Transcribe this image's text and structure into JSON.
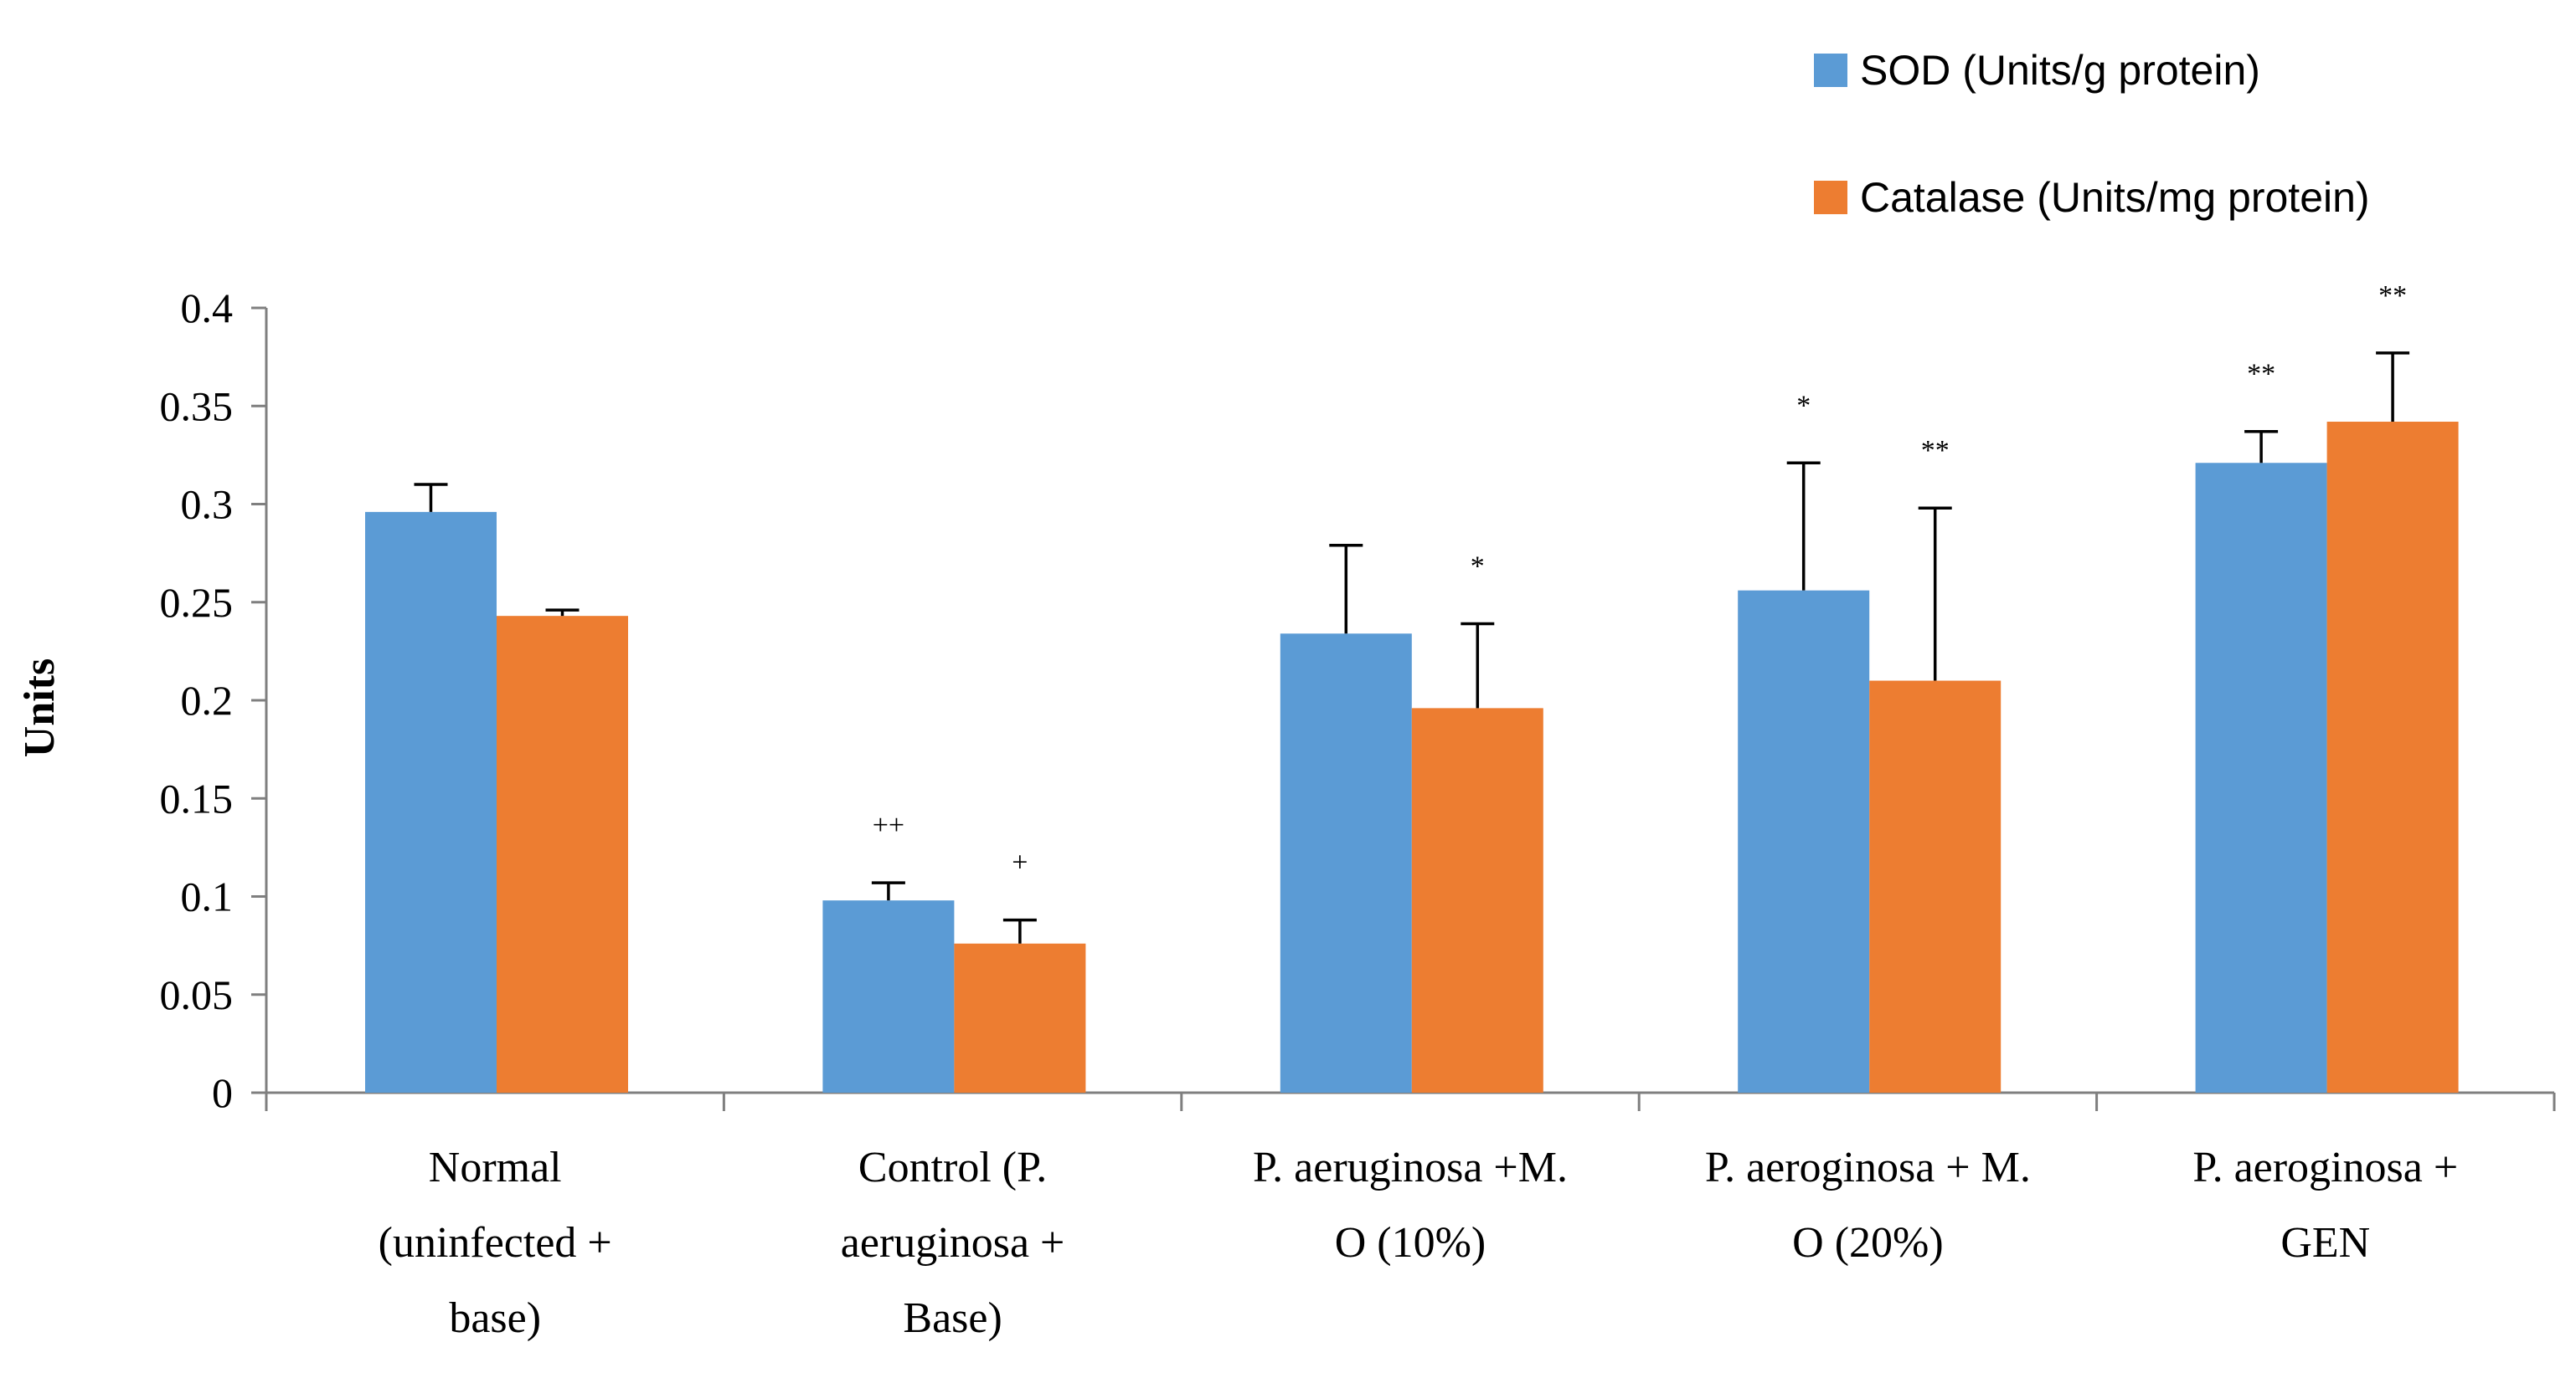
{
  "chart_data": {
    "type": "bar",
    "title": "",
    "xlabel": "",
    "ylabel": "Units",
    "ylim": [
      0,
      0.4
    ],
    "yticks": [
      "0",
      "0.05",
      "0.1",
      "0.15",
      "0.2",
      "0.25",
      "0.3",
      "0.35",
      "0.4"
    ],
    "categories": [
      [
        "Normal",
        "(uninfected +",
        "base)"
      ],
      [
        "Control (P.",
        "aeruginosa +",
        "Base)"
      ],
      [
        "P. aeruginosa +M.",
        "O (10%)"
      ],
      [
        "P. aeroginosa + M.",
        "O (20%)"
      ],
      [
        "P. aeroginosa +",
        "GEN"
      ]
    ],
    "series": [
      {
        "name": "SOD (Units/g protein)",
        "color": "#5B9BD5",
        "values": [
          0.296,
          0.098,
          0.234,
          0.256,
          0.321
        ],
        "errors": [
          0.014,
          0.009,
          0.045,
          0.065,
          0.016
        ],
        "annotations": [
          "",
          "++",
          "",
          "*",
          "**"
        ]
      },
      {
        "name": "Catalase (Units/mg protein)",
        "color": "#ED7D31",
        "values": [
          0.243,
          0.076,
          0.196,
          0.21,
          0.342
        ],
        "errors": [
          0.003,
          0.012,
          0.043,
          0.088,
          0.035
        ],
        "annotations": [
          "",
          "+",
          "*",
          "**",
          "**"
        ]
      }
    ],
    "legend": "top-right"
  }
}
